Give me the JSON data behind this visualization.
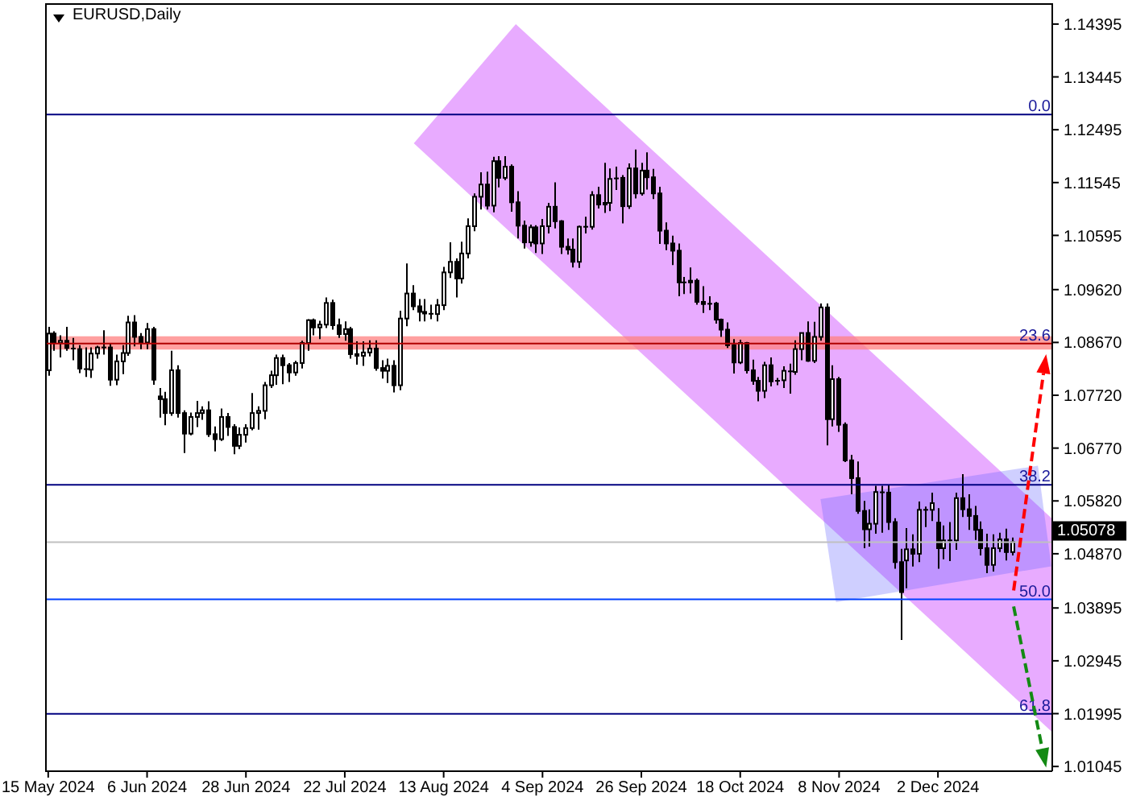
{
  "chart_data": {
    "type": "candlestick",
    "title": "EURUSD,Daily",
    "color": "#000000",
    "categories": [
      "15 May 2024",
      null,
      null,
      null,
      null,
      null,
      null,
      null,
      null,
      null,
      null,
      null,
      null,
      null,
      null,
      null,
      "6 Jun 2024",
      null,
      null,
      null,
      null,
      null,
      null,
      null,
      null,
      null,
      null,
      null,
      null,
      null,
      null,
      null,
      "28 Jun 2024",
      null,
      null,
      null,
      null,
      null,
      null,
      null,
      null,
      null,
      null,
      null,
      null,
      null,
      null,
      null,
      "22 Jul 2024",
      null,
      null,
      null,
      null,
      null,
      null,
      null,
      null,
      null,
      null,
      null,
      null,
      null,
      null,
      null,
      "13 Aug 2024",
      null,
      null,
      null,
      null,
      null,
      null,
      null,
      null,
      null,
      null,
      null,
      null,
      null,
      null,
      null,
      "4 Sep 2024",
      null,
      null,
      null,
      null,
      null,
      null,
      null,
      null,
      null,
      null,
      null,
      null,
      null,
      null,
      null,
      "26 Sep 2024",
      null,
      null,
      null,
      null,
      null,
      null,
      null,
      null,
      null,
      null,
      null,
      null,
      null,
      null,
      null,
      "18 Oct 2024",
      null,
      null,
      null,
      null,
      null,
      null,
      null,
      null,
      null,
      null,
      null,
      null,
      null,
      null,
      null,
      "8 Nov 2024",
      null,
      null,
      null,
      null,
      null,
      null,
      null,
      null,
      null,
      null,
      null,
      null,
      null,
      null,
      null,
      "2 Dec 2024",
      null,
      null,
      null,
      null,
      null,
      null,
      null,
      null,
      null,
      null,
      null,
      null,
      null,
      null,
      null,
      null,
      null,
      null
    ],
    "ohlc": [
      [
        1.0817,
        1.0895,
        1.0807,
        1.0883
      ],
      [
        1.0883,
        1.0887,
        1.0852,
        1.0866
      ],
      [
        1.0866,
        1.088,
        1.084,
        1.087
      ],
      [
        1.087,
        1.0895,
        1.0852,
        1.0857
      ],
      [
        1.0857,
        1.0875,
        1.0835,
        1.0855
      ],
      [
        1.0855,
        1.0862,
        1.0812,
        1.082
      ],
      [
        1.082,
        1.0858,
        1.0805,
        1.0818
      ],
      [
        1.0818,
        1.0858,
        1.0803,
        1.0847
      ],
      [
        1.0847,
        1.0861,
        1.0838,
        1.0858
      ],
      [
        1.0858,
        1.0889,
        1.0845,
        1.0858
      ],
      [
        1.0858,
        1.0865,
        1.0789,
        1.08
      ],
      [
        1.08,
        1.0845,
        1.079,
        1.0833
      ],
      [
        1.0833,
        1.0862,
        1.081,
        1.0848
      ],
      [
        1.0848,
        1.0915,
        1.0843,
        1.0903
      ],
      [
        1.0903,
        1.0916,
        1.086,
        1.0877
      ],
      [
        1.0877,
        1.0884,
        1.0855,
        1.0867
      ],
      [
        1.0867,
        1.0902,
        1.0855,
        1.0891
      ],
      [
        1.0891,
        1.0895,
        1.0791,
        1.08
      ],
      [
        1.077,
        1.0785,
        1.0732,
        1.0765
      ],
      [
        1.0765,
        1.0778,
        1.0718,
        1.074
      ],
      [
        1.074,
        1.0852,
        1.0735,
        1.0817
      ],
      [
        1.0817,
        1.0826,
        1.0732,
        1.074
      ],
      [
        1.074,
        1.0745,
        1.0668,
        1.0703
      ],
      [
        1.0703,
        1.0741,
        1.07,
        1.0733
      ],
      [
        1.0733,
        1.0762,
        1.0715,
        1.074
      ],
      [
        1.074,
        1.0752,
        1.0728,
        1.0745
      ],
      [
        1.0745,
        1.0761,
        1.0697,
        1.0702
      ],
      [
        1.0702,
        1.0716,
        1.0671,
        1.0693
      ],
      [
        1.0693,
        1.0748,
        1.069,
        1.0733
      ],
      [
        1.0733,
        1.074,
        1.0699,
        1.0715
      ],
      [
        1.0715,
        1.072,
        1.0666,
        1.0681
      ],
      [
        1.0681,
        1.0714,
        1.0675,
        1.0701
      ],
      [
        1.0701,
        1.072,
        1.0687,
        1.0713
      ],
      [
        1.0713,
        1.0776,
        1.0709,
        1.074
      ],
      [
        1.074,
        1.0752,
        1.071,
        1.0744
      ],
      [
        1.0744,
        1.0796,
        1.0729,
        1.079
      ],
      [
        1.079,
        1.0816,
        1.0785,
        1.0808
      ],
      [
        1.0808,
        1.0845,
        1.0791,
        1.0839
      ],
      [
        1.0839,
        1.0845,
        1.0792,
        1.0826
      ],
      [
        1.0826,
        1.083,
        1.0796,
        1.0813
      ],
      [
        1.0813,
        1.0834,
        1.0807,
        1.083
      ],
      [
        1.083,
        1.087,
        1.082,
        1.0866
      ],
      [
        1.0866,
        1.0909,
        1.0852,
        1.0907
      ],
      [
        1.0907,
        1.091,
        1.088,
        1.0894
      ],
      [
        1.0894,
        1.0906,
        1.0873,
        1.0899
      ],
      [
        1.0899,
        1.0948,
        1.0893,
        1.0938
      ],
      [
        1.0938,
        1.0944,
        1.089,
        1.0898
      ],
      [
        1.0898,
        1.091,
        1.0875,
        1.0882
      ],
      [
        1.0882,
        1.0905,
        1.087,
        1.0891
      ],
      [
        1.0891,
        1.0895,
        1.0838,
        1.0846
      ],
      [
        1.0846,
        1.0869,
        1.0827,
        1.0843
      ],
      [
        1.0843,
        1.0869,
        1.0825,
        1.0849
      ],
      [
        1.0849,
        1.0871,
        1.0842,
        1.0856
      ],
      [
        1.0856,
        1.0871,
        1.0816,
        1.0821
      ],
      [
        1.0821,
        1.0835,
        1.0802,
        1.0816
      ],
      [
        1.0816,
        1.0838,
        1.0794,
        1.0825
      ],
      [
        1.0825,
        1.0835,
        1.0777,
        1.079
      ],
      [
        1.079,
        1.0924,
        1.0781,
        1.091
      ],
      [
        1.091,
        1.1009,
        1.0896,
        1.0955
      ],
      [
        1.0955,
        1.097,
        1.0925,
        1.0932
      ],
      [
        1.0932,
        1.0945,
        1.0905,
        1.0922
      ],
      [
        1.0922,
        1.0945,
        1.0905,
        1.0919
      ],
      [
        1.0919,
        1.0935,
        1.0909,
        1.0918
      ],
      [
        1.0918,
        1.0945,
        1.0905,
        1.0934
      ],
      [
        1.0934,
        1.1003,
        1.0925,
        1.0993
      ],
      [
        1.0993,
        1.1047,
        1.0983,
        1.1012
      ],
      [
        1.1012,
        1.1018,
        1.0948,
        1.0982
      ],
      [
        1.0982,
        1.1048,
        1.0973,
        1.1027
      ],
      [
        1.1027,
        1.109,
        1.1018,
        1.1076
      ],
      [
        1.1076,
        1.1135,
        1.1067,
        1.1129
      ],
      [
        1.1129,
        1.1173,
        1.1106,
        1.1151
      ],
      [
        1.1151,
        1.1174,
        1.1106,
        1.1113
      ],
      [
        1.1113,
        1.1201,
        1.1101,
        1.1193
      ],
      [
        1.1193,
        1.1202,
        1.1146,
        1.1163
      ],
      [
        1.1163,
        1.1202,
        1.1159,
        1.1183
      ],
      [
        1.1183,
        1.1187,
        1.1102,
        1.1119
      ],
      [
        1.1119,
        1.1139,
        1.1054,
        1.1077
      ],
      [
        1.1077,
        1.1086,
        1.1036,
        1.1047
      ],
      [
        1.1047,
        1.1079,
        1.1039,
        1.1074
      ],
      [
        1.1074,
        1.1078,
        1.1028,
        1.1045
      ],
      [
        1.1045,
        1.1089,
        1.1026,
        1.1076
      ],
      [
        1.1076,
        1.1118,
        1.1063,
        1.1111
      ],
      [
        1.1111,
        1.1155,
        1.1072,
        1.1085
      ],
      [
        1.1085,
        1.1087,
        1.1026,
        1.1039
      ],
      [
        1.1039,
        1.1054,
        1.1025,
        1.1034
      ],
      [
        1.1034,
        1.1054,
        1.1002,
        1.1012
      ],
      [
        1.1012,
        1.1077,
        1.1001,
        1.1075
      ],
      [
        1.1075,
        1.1093,
        1.1063,
        1.1075
      ],
      [
        1.1075,
        1.1139,
        1.107,
        1.1132
      ],
      [
        1.1132,
        1.1147,
        1.1108,
        1.1115
      ],
      [
        1.1115,
        1.119,
        1.11,
        1.1118
      ],
      [
        1.1118,
        1.118,
        1.1103,
        1.1161
      ],
      [
        1.1161,
        1.1183,
        1.1141,
        1.1163
      ],
      [
        1.1163,
        1.1168,
        1.1081,
        1.1112
      ],
      [
        1.1112,
        1.1189,
        1.1107,
        1.118
      ],
      [
        1.118,
        1.1214,
        1.1126,
        1.1135
      ],
      [
        1.1135,
        1.119,
        1.1131,
        1.1176
      ],
      [
        1.1176,
        1.1209,
        1.1142,
        1.1164
      ],
      [
        1.1164,
        1.1179,
        1.1125,
        1.1135
      ],
      [
        1.1135,
        1.1147,
        1.1044,
        1.1068
      ],
      [
        1.1068,
        1.1083,
        1.1033,
        1.1045
      ],
      [
        1.1045,
        1.1059,
        1.1006,
        1.1032
      ],
      [
        1.1032,
        1.1045,
        1.095,
        1.0975
      ],
      [
        1.0975,
        1.0985,
        1.0954,
        1.0975
      ],
      [
        1.0975,
        1.1002,
        1.0955,
        1.0978
      ],
      [
        1.0978,
        1.0982,
        1.0935,
        1.094
      ],
      [
        1.094,
        1.0968,
        1.092,
        1.0936
      ],
      [
        1.0936,
        1.095,
        1.0925,
        1.0937
      ],
      [
        1.0937,
        1.094,
        1.0901,
        1.0908
      ],
      [
        1.0908,
        1.091,
        1.0877,
        1.089
      ],
      [
        1.089,
        1.0903,
        1.0857,
        1.0862
      ],
      [
        1.0862,
        1.0873,
        1.0811,
        1.0831
      ],
      [
        1.0831,
        1.0872,
        1.0828,
        1.0866
      ],
      [
        1.0866,
        1.0868,
        1.0811,
        1.0817
      ],
      [
        1.0817,
        1.0836,
        1.0791,
        1.0798
      ],
      [
        1.0798,
        1.0805,
        1.0761,
        1.078
      ],
      [
        1.078,
        1.0832,
        1.0767,
        1.0826
      ],
      [
        1.0826,
        1.084,
        1.0788,
        1.0797
      ],
      [
        1.0797,
        1.0803,
        1.079,
        1.0799
      ],
      [
        1.0799,
        1.0824,
        1.0785,
        1.0816
      ],
      [
        1.0816,
        1.0829,
        1.0775,
        1.0814
      ],
      [
        1.0814,
        1.0871,
        1.0809,
        1.0855
      ],
      [
        1.0855,
        1.0885,
        1.0835,
        1.0884
      ],
      [
        1.0884,
        1.0905,
        1.0832,
        1.0834
      ],
      [
        1.0834,
        1.0904,
        1.083,
        1.0877
      ],
      [
        1.0877,
        1.0937,
        1.087,
        1.093
      ],
      [
        1.093,
        1.0937,
        1.0682,
        1.0729
      ],
      [
        1.0729,
        1.0826,
        1.0716,
        1.0801
      ],
      [
        1.0801,
        1.0805,
        1.0706,
        1.0719
      ],
      [
        1.0719,
        1.0723,
        1.0652,
        1.0655
      ],
      [
        1.0655,
        1.0665,
        1.0594,
        1.0623
      ],
      [
        1.0623,
        1.0653,
        1.0559,
        1.0564
      ],
      [
        1.0564,
        1.0582,
        1.0497,
        1.0531
      ],
      [
        1.0531,
        1.0567,
        1.05,
        1.0541
      ],
      [
        1.0541,
        1.0609,
        1.0523,
        1.0598
      ],
      [
        1.0598,
        1.0609,
        1.0525,
        1.0597
      ],
      [
        1.0597,
        1.0611,
        1.053,
        1.0544
      ],
      [
        1.0544,
        1.0551,
        1.046,
        1.0472
      ],
      [
        1.0472,
        1.0496,
        1.0332,
        1.0418
      ],
      [
        1.0475,
        1.0533,
        1.0425,
        1.0495
      ],
      [
        1.0495,
        1.0522,
        1.0464,
        1.0487
      ],
      [
        1.0487,
        1.0581,
        1.0472,
        1.0566
      ],
      [
        1.0566,
        1.0572,
        1.0535,
        1.0566
      ],
      [
        1.0566,
        1.0597,
        1.0546,
        1.0578
      ],
      [
        1.0543,
        1.0569,
        1.046,
        1.0497
      ],
      [
        1.0497,
        1.0538,
        1.0477,
        1.0511
      ],
      [
        1.0511,
        1.0544,
        1.0474,
        1.0511
      ],
      [
        1.0511,
        1.0597,
        1.0494,
        1.0587
      ],
      [
        1.0587,
        1.063,
        1.0553,
        1.0567
      ],
      [
        1.0567,
        1.0594,
        1.053,
        1.0555
      ],
      [
        1.0555,
        1.0573,
        1.0512,
        1.053
      ],
      [
        1.053,
        1.0545,
        1.0484,
        1.0497
      ],
      [
        1.0497,
        1.0523,
        1.0452,
        1.0467
      ],
      [
        1.0467,
        1.0522,
        1.0455,
        1.0497
      ],
      [
        1.0497,
        1.0525,
        1.049,
        1.0513
      ],
      [
        1.0513,
        1.0532,
        1.0475,
        1.049
      ],
      [
        1.049,
        1.0516,
        1.0484,
        1.0508
      ],
      null,
      null,
      null,
      null,
      null,
      null
    ],
    "ylim": [
      1.0096,
      1.1477
    ],
    "yticks": [
      1.01045,
      1.01995,
      1.02945,
      1.03895,
      {
        "value": 1.0487,
        "label": "1.04870"
      },
      {
        "value": 1.0582,
        "label": "1.05820"
      },
      {
        "value": 1.0677,
        "label": "1.06770"
      },
      {
        "value": 1.0772,
        "label": "1.07720"
      },
      {
        "value": 1.0867,
        "label": "1.08670"
      },
      {
        "value": 1.0962,
        "label": "1.09620"
      },
      1.10595,
      1.11545,
      1.12495,
      1.13445,
      1.14395
    ],
    "bands": [
      {
        "axis": "y",
        "from": 1.0854,
        "to": 1.0878,
        "color": "#ff8080"
      }
    ],
    "ref_lines": [
      {
        "axis": "y",
        "value": 1.1277,
        "color": "#000080"
      },
      {
        "axis": "y",
        "value": 1.0865,
        "color": "#b00000"
      },
      {
        "axis": "y",
        "value": 1.0611,
        "color": "#000080"
      },
      {
        "axis": "y",
        "value": 1.0405,
        "color": "#0040ff"
      },
      {
        "axis": "y",
        "value": 1.0199,
        "color": "#000080"
      },
      {
        "axis": "y",
        "value": 1.05078,
        "label": "1.05078",
        "color": "#c0c0c0"
      }
    ],
    "annotations": [
      {
        "text": "0.0",
        "y": 1.1277
      },
      {
        "text": "23.6",
        "y": 1.0865
      },
      {
        "text": "38.2",
        "y": 1.0611
      },
      {
        "text": "50.0",
        "y": 1.0405
      },
      {
        "text": "61.8",
        "y": 1.0199
      }
    ]
  }
}
